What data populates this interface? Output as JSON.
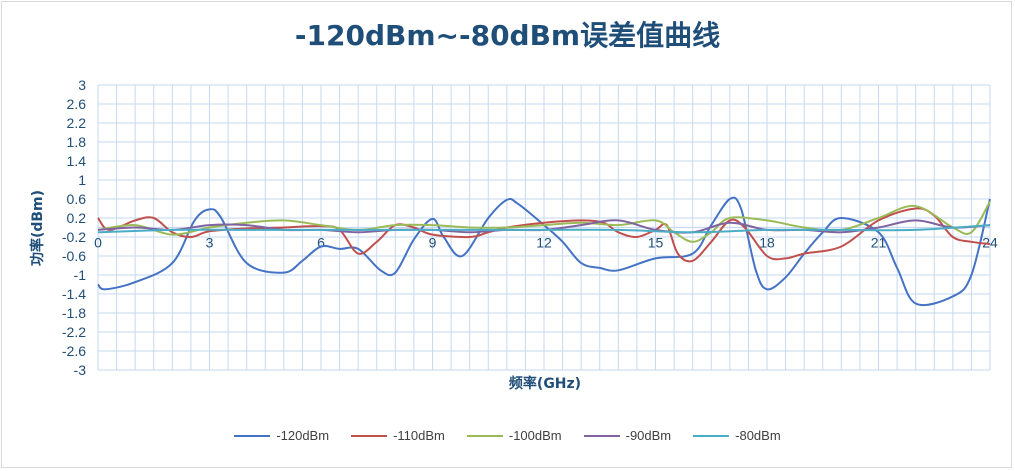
{
  "chart_data": {
    "type": "line",
    "title": "-120dBm~-80dBm误差值曲线",
    "xlabel": "频率(GHz)",
    "ylabel": "功率(dBm)",
    "xlim": [
      0,
      24
    ],
    "ylim": [
      -3,
      3
    ],
    "x_ticks": [
      0,
      3,
      6,
      9,
      12,
      15,
      18,
      21,
      24
    ],
    "y_ticks": [
      "3",
      "2.6",
      "2.2",
      "1.8",
      "1.4",
      "1",
      "0.6",
      "0.2",
      "-0.2",
      "-0.6",
      "-1",
      "-1.4",
      "-1.8",
      "-2.2",
      "-2.6",
      "-3"
    ],
    "grid": "on",
    "legend_position": "bottom",
    "series": [
      {
        "name": "-120dBm",
        "color": "#4472c4",
        "points": [
          [
            0,
            -1.2
          ],
          [
            0.2,
            -1.3
          ],
          [
            1,
            -1.15
          ],
          [
            2,
            -0.75
          ],
          [
            2.6,
            0.15
          ],
          [
            3,
            0.38
          ],
          [
            3.3,
            0.22
          ],
          [
            4,
            -0.75
          ],
          [
            5,
            -0.95
          ],
          [
            5.5,
            -0.7
          ],
          [
            6,
            -0.4
          ],
          [
            6.5,
            -0.45
          ],
          [
            7,
            -0.45
          ],
          [
            7.6,
            -0.9
          ],
          [
            8,
            -0.95
          ],
          [
            8.5,
            -0.25
          ],
          [
            9,
            0.18
          ],
          [
            9.3,
            -0.2
          ],
          [
            9.8,
            -0.6
          ],
          [
            10.5,
            0.2
          ],
          [
            11,
            0.58
          ],
          [
            11.3,
            0.5
          ],
          [
            12,
            0.05
          ],
          [
            12.5,
            -0.3
          ],
          [
            13,
            -0.75
          ],
          [
            13.5,
            -0.85
          ],
          [
            14,
            -0.9
          ],
          [
            15,
            -0.65
          ],
          [
            16,
            -0.55
          ],
          [
            16.5,
            0.05
          ],
          [
            17,
            0.6
          ],
          [
            17.3,
            0.4
          ],
          [
            17.7,
            -0.9
          ],
          [
            18,
            -1.3
          ],
          [
            18.5,
            -1.05
          ],
          [
            19,
            -0.55
          ],
          [
            19.5,
            -0.1
          ],
          [
            20,
            0.2
          ],
          [
            21,
            -0.1
          ],
          [
            21.5,
            -0.85
          ],
          [
            22,
            -1.6
          ],
          [
            23,
            -1.45
          ],
          [
            23.5,
            -1
          ],
          [
            24,
            0.6
          ]
        ]
      },
      {
        "name": "-110dBm",
        "color": "#c0504d",
        "points": [
          [
            0,
            0.2
          ],
          [
            0.3,
            -0.05
          ],
          [
            1,
            0.15
          ],
          [
            1.5,
            0.2
          ],
          [
            2,
            -0.1
          ],
          [
            2.5,
            -0.2
          ],
          [
            3,
            -0.08
          ],
          [
            4,
            -0.02
          ],
          [
            5,
            0.0
          ],
          [
            6,
            0.03
          ],
          [
            6.5,
            -0.05
          ],
          [
            7,
            -0.55
          ],
          [
            7.5,
            -0.3
          ],
          [
            8,
            0.05
          ],
          [
            8.5,
            0.0
          ],
          [
            9,
            -0.15
          ],
          [
            10,
            -0.2
          ],
          [
            10.5,
            -0.1
          ],
          [
            11,
            0.0
          ],
          [
            12,
            0.1
          ],
          [
            13,
            0.15
          ],
          [
            13.6,
            0.1
          ],
          [
            14,
            -0.1
          ],
          [
            14.5,
            -0.2
          ],
          [
            15,
            -0.05
          ],
          [
            15.3,
            0.05
          ],
          [
            15.6,
            -0.55
          ],
          [
            16,
            -0.7
          ],
          [
            16.5,
            -0.3
          ],
          [
            17,
            0.15
          ],
          [
            17.4,
            0.0
          ],
          [
            18,
            -0.6
          ],
          [
            18.5,
            -0.65
          ],
          [
            19,
            -0.55
          ],
          [
            20,
            -0.4
          ],
          [
            21,
            0.15
          ],
          [
            22,
            0.4
          ],
          [
            22.5,
            0.25
          ],
          [
            23,
            -0.2
          ],
          [
            23.5,
            -0.3
          ],
          [
            24,
            -0.35
          ]
        ]
      },
      {
        "name": "-100dBm",
        "color": "#9bbb59",
        "points": [
          [
            0,
            -0.05
          ],
          [
            1,
            0.05
          ],
          [
            2,
            -0.15
          ],
          [
            3,
            0.0
          ],
          [
            4,
            0.1
          ],
          [
            5,
            0.15
          ],
          [
            6,
            0.05
          ],
          [
            7,
            -0.05
          ],
          [
            8,
            0.05
          ],
          [
            9,
            0.05
          ],
          [
            10,
            0.0
          ],
          [
            11,
            0.0
          ],
          [
            12,
            0.05
          ],
          [
            13,
            0.1
          ],
          [
            14,
            0.05
          ],
          [
            15,
            0.15
          ],
          [
            15.5,
            -0.1
          ],
          [
            16,
            -0.3
          ],
          [
            16.5,
            -0.1
          ],
          [
            17,
            0.2
          ],
          [
            18,
            0.15
          ],
          [
            19,
            0.0
          ],
          [
            20,
            -0.05
          ],
          [
            21,
            0.2
          ],
          [
            22,
            0.45
          ],
          [
            23,
            0.0
          ],
          [
            23.5,
            -0.1
          ],
          [
            24,
            0.55
          ]
        ]
      },
      {
        "name": "-90dBm",
        "color": "#8064a2",
        "points": [
          [
            0,
            -0.05
          ],
          [
            1,
            0.0
          ],
          [
            2,
            -0.05
          ],
          [
            3,
            0.05
          ],
          [
            4,
            0.05
          ],
          [
            5,
            -0.05
          ],
          [
            6,
            -0.05
          ],
          [
            7,
            -0.1
          ],
          [
            8,
            -0.05
          ],
          [
            9,
            -0.05
          ],
          [
            10,
            -0.1
          ],
          [
            11,
            -0.05
          ],
          [
            12,
            -0.05
          ],
          [
            13,
            0.05
          ],
          [
            14,
            0.15
          ],
          [
            15,
            -0.05
          ],
          [
            16,
            -0.1
          ],
          [
            17,
            0.1
          ],
          [
            18,
            -0.05
          ],
          [
            19,
            -0.05
          ],
          [
            20,
            -0.1
          ],
          [
            21,
            0.0
          ],
          [
            22,
            0.15
          ],
          [
            23,
            0.0
          ],
          [
            24,
            0.05
          ]
        ]
      },
      {
        "name": "-80dBm",
        "color": "#4bacc6",
        "points": [
          [
            0,
            -0.1
          ],
          [
            2,
            -0.05
          ],
          [
            4,
            -0.05
          ],
          [
            6,
            -0.05
          ],
          [
            8,
            -0.05
          ],
          [
            10,
            -0.05
          ],
          [
            12,
            -0.05
          ],
          [
            14,
            -0.05
          ],
          [
            16,
            -0.1
          ],
          [
            18,
            -0.05
          ],
          [
            20,
            -0.05
          ],
          [
            22,
            -0.05
          ],
          [
            24,
            0.05
          ]
        ]
      }
    ]
  }
}
